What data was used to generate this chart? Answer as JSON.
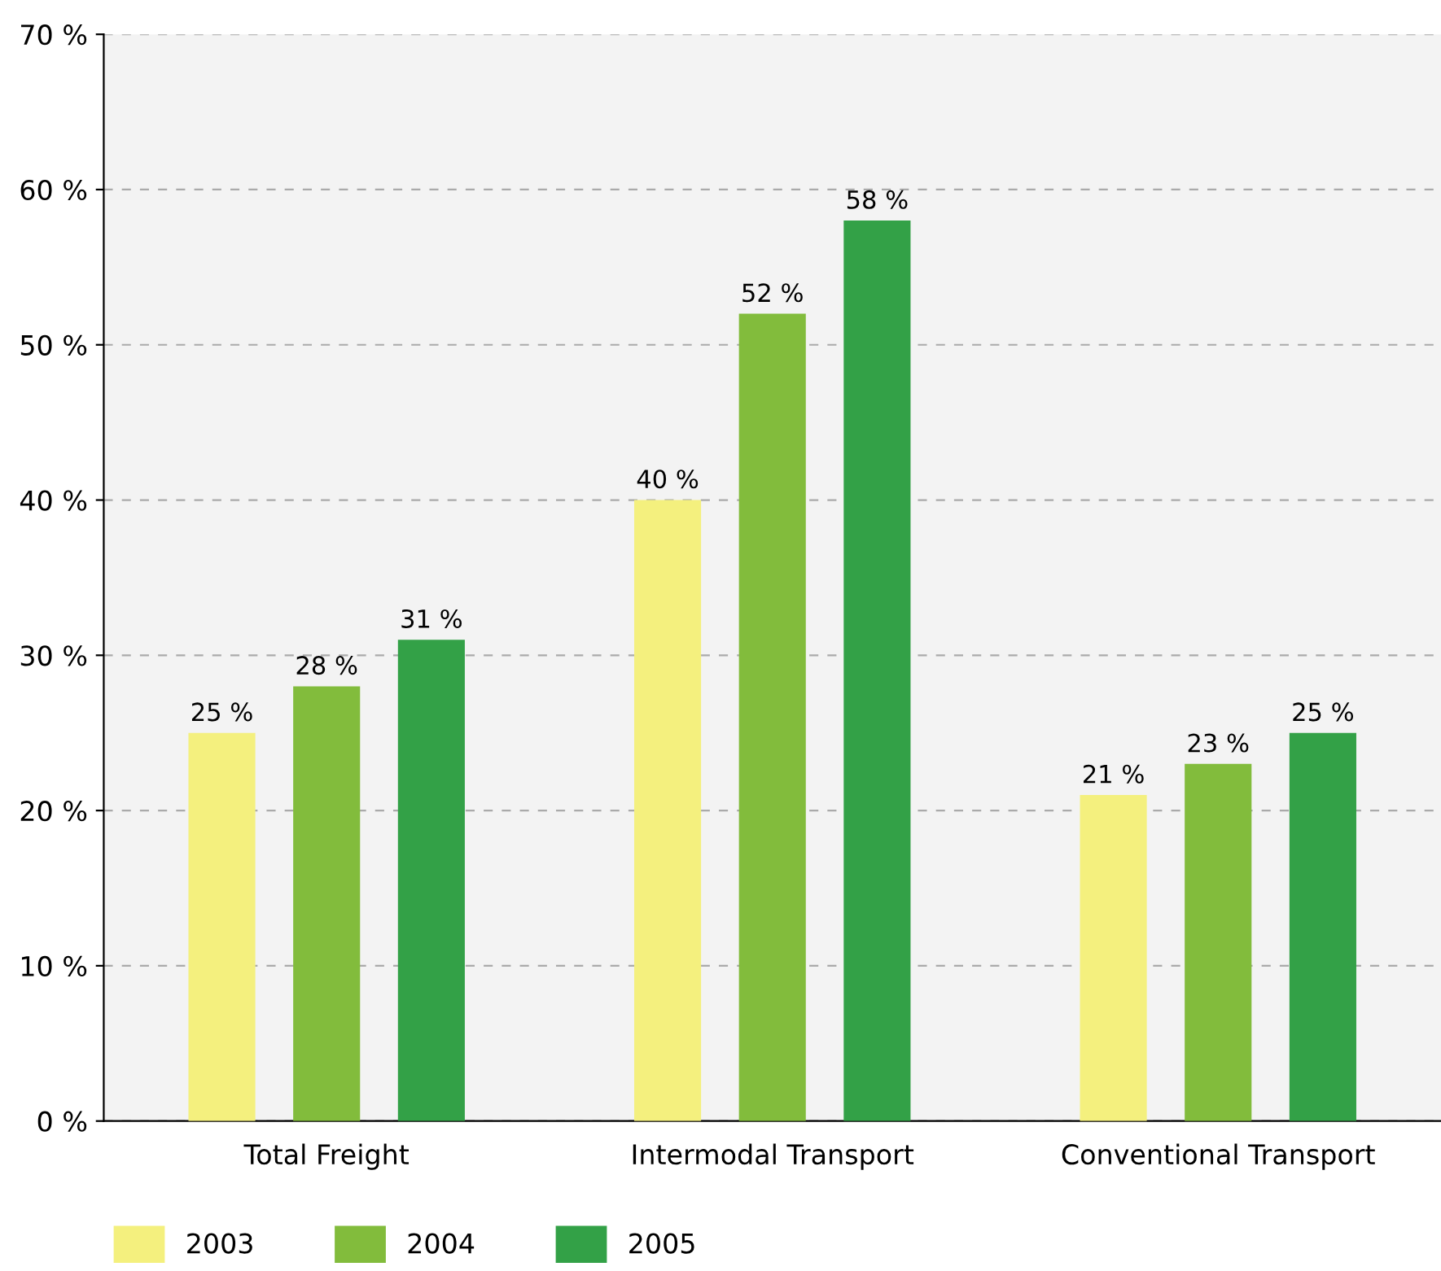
{
  "chart_data": {
    "type": "bar",
    "categories": [
      "Total Freight",
      "Intermodal Transport",
      "Conventional Transport"
    ],
    "series": [
      {
        "name": "2003",
        "color": "#f4f07e",
        "values": [
          25,
          40,
          21
        ],
        "value_labels": [
          "25 %",
          "40 %",
          "21 %"
        ]
      },
      {
        "name": "2004",
        "color": "#82bc3c",
        "values": [
          28,
          52,
          23
        ],
        "value_labels": [
          "28 %",
          "52 %",
          "23 %"
        ]
      },
      {
        "name": "2005",
        "color": "#33a147",
        "values": [
          31,
          58,
          25
        ],
        "value_labels": [
          "31 %",
          "58 %",
          "25 %"
        ]
      }
    ],
    "ylim": [
      0,
      70
    ],
    "yticks": [
      {
        "value": 0,
        "label": "0 %"
      },
      {
        "value": 10,
        "label": "10 %"
      },
      {
        "value": 20,
        "label": "20 %"
      },
      {
        "value": 30,
        "label": "30 %"
      },
      {
        "value": 40,
        "label": "40 %"
      },
      {
        "value": 50,
        "label": "50 %"
      },
      {
        "value": 60,
        "label": "60 %"
      },
      {
        "value": 70,
        "label": "70 %"
      }
    ],
    "grid": "y",
    "legend": "bottom left"
  }
}
